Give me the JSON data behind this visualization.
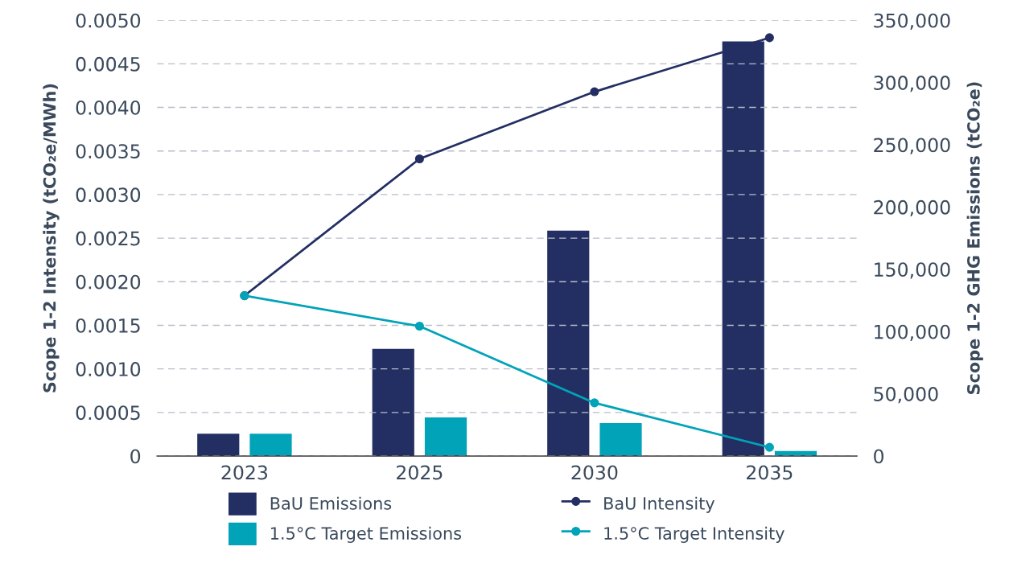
{
  "chart_data": {
    "type": "bar",
    "categories": [
      "2023",
      "2025",
      "2030",
      "2035"
    ],
    "ylabel": "Scope 1-2 Intensity (tCO₂e/MWh)",
    "y2label": "Scope 1-2 GHG Emissions (tCO₂e)",
    "series": [
      {
        "name": "BaU Emissions",
        "axis": "y2",
        "color": "#232f63",
        "values": [
          18000,
          86000,
          181000,
          333000
        ]
      },
      {
        "name": "1.5°C Target Emissions",
        "axis": "y2",
        "color": "#00a3b8",
        "values": [
          18000,
          31000,
          26500,
          4000
        ]
      },
      {
        "name": "BaU Intensity",
        "type": "line",
        "axis": "y",
        "color": "#232f63",
        "marker": "circle",
        "values": [
          0.00184,
          0.00341,
          0.00418,
          0.0048
        ]
      },
      {
        "name": "1.5°C Target Intensity",
        "type": "line",
        "axis": "y",
        "color": "#00a3b8",
        "marker": "circle",
        "values": [
          0.00184,
          0.00149,
          0.00061,
          0.0001
        ]
      }
    ],
    "ylim": [
      0,
      0.005
    ],
    "yticks": [
      0,
      {
        "value": 0.0005,
        "label": "0.0005"
      },
      {
        "value": 0.001,
        "label": "0.0010"
      },
      {
        "value": 0.0015,
        "label": "0.0015"
      },
      {
        "value": 0.002,
        "label": "0.0020"
      },
      {
        "value": 0.0025,
        "label": "0.0025"
      },
      {
        "value": 0.003,
        "label": "0.0030"
      },
      {
        "value": 0.0035,
        "label": "0.0035"
      },
      {
        "value": 0.004,
        "label": "0.0040"
      },
      {
        "value": 0.0045,
        "label": "0.0045"
      },
      {
        "value": 0.005,
        "label": "0.0050"
      }
    ],
    "y2lim": [
      0,
      350000
    ],
    "y2ticks": [
      0,
      {
        "value": 50000,
        "label": "50,000"
      },
      {
        "value": 100000,
        "label": "100,000"
      },
      {
        "value": 150000,
        "label": "150,000"
      },
      {
        "value": 200000,
        "label": "200,000"
      },
      {
        "value": 250000,
        "label": "250,000"
      },
      {
        "value": 300000,
        "label": "300,000"
      },
      {
        "value": 350000,
        "label": "350,000"
      }
    ],
    "grid": "y",
    "legend": "bottom",
    "line_style": "solid"
  }
}
